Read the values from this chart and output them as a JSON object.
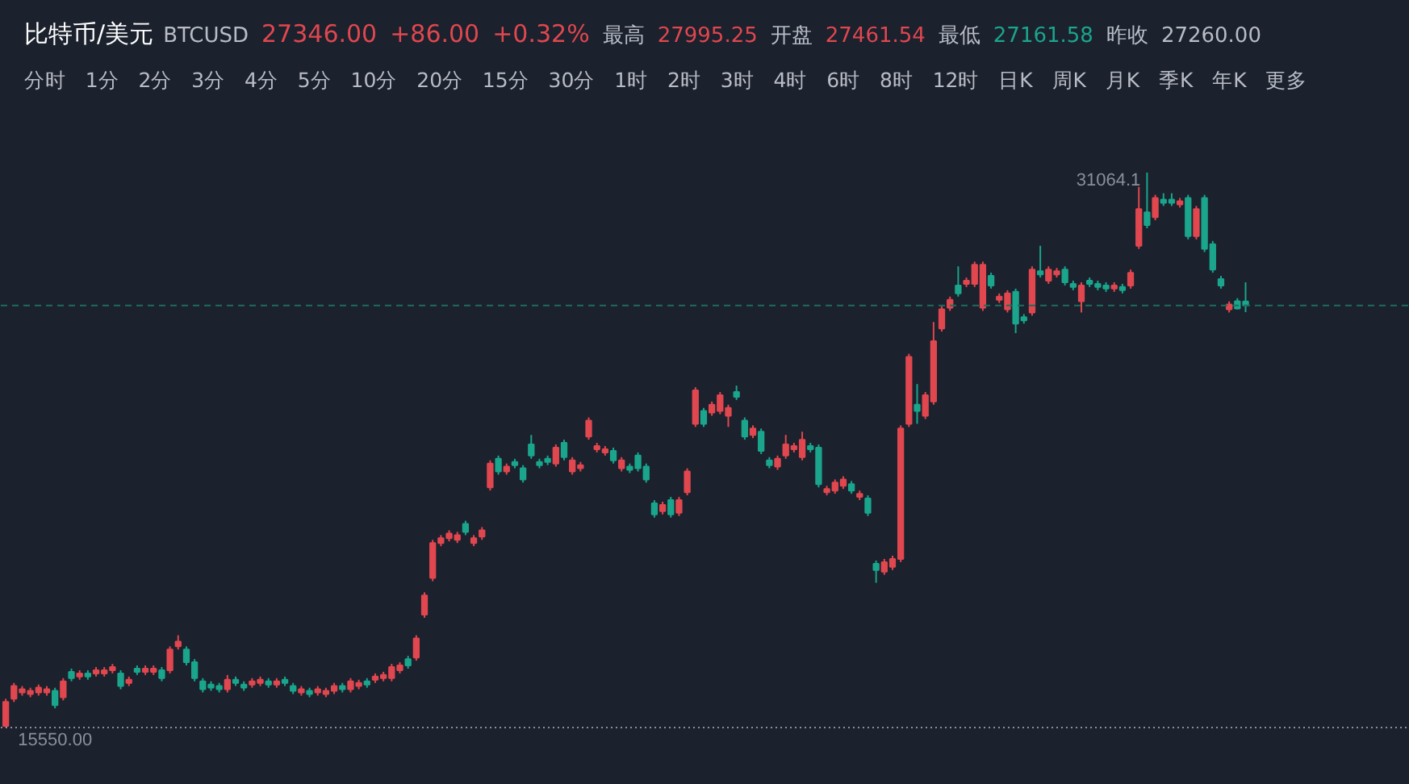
{
  "chart_data": {
    "type": "candlestick",
    "title": "比特币/美元",
    "subtitle": "分时   1分   2分   3分   4分   5分   10分   20分   15分   30分   1时   2时   3时   4时   6时   8时   12时   日K   周K   月K   季K   年K   更多",
    "annotations": [
      "BTCUSD",
      "27346.00",
      "+86.00",
      "+0.32%",
      "最高",
      "27995.25",
      "开盘",
      "27461.54",
      "最低",
      "27161.58",
      "昨收",
      "27260.00",
      "31064.1",
      "15550.00"
    ],
    "ref_lines": [
      {
        "axis": "y",
        "value": 27346,
        "color": "#1f6b5e",
        "line_style": "dashed"
      }
    ],
    "categories": [
      null,
      null,
      null,
      null,
      null,
      null,
      null,
      null,
      null,
      null,
      null,
      null,
      null,
      null,
      null,
      null,
      null,
      null,
      null,
      null,
      null,
      null,
      null,
      null,
      null,
      null,
      null,
      null,
      null,
      null,
      null,
      null,
      null,
      null,
      null,
      null,
      null,
      null,
      null,
      null,
      null,
      null,
      null,
      null,
      null,
      null,
      null,
      null,
      null,
      null,
      null,
      null,
      null,
      null,
      null,
      null,
      null,
      null,
      null,
      null,
      null,
      null,
      null,
      null,
      null,
      null,
      null,
      null,
      null,
      null,
      null,
      null,
      null,
      null,
      null,
      null,
      null,
      null,
      null,
      null,
      null,
      null,
      null,
      null,
      null,
      null,
      null,
      null,
      null,
      null,
      null,
      null,
      null,
      null,
      null,
      null,
      null,
      null,
      null,
      null,
      null,
      null,
      null,
      null,
      null,
      null,
      null,
      null,
      null,
      null,
      null,
      null,
      null,
      null,
      null,
      null,
      null,
      null,
      null,
      null,
      null,
      null,
      null,
      null,
      null,
      null,
      null,
      null,
      null,
      null,
      null,
      null,
      null,
      null,
      null,
      null,
      null,
      null,
      null,
      null,
      null,
      null,
      null,
      null,
      null,
      null,
      null,
      null,
      null,
      null,
      null,
      null
    ],
    "ohlc": [
      [
        15594,
        16351,
        15550,
        16262
      ],
      [
        16351,
        16795,
        16262,
        16706
      ],
      [
        16528,
        16706,
        16439,
        16617
      ],
      [
        16483,
        16661,
        16395,
        16572
      ],
      [
        16528,
        16750,
        16439,
        16661
      ],
      [
        16528,
        16706,
        16439,
        16617
      ],
      [
        16572,
        16661,
        16083,
        16173
      ],
      [
        16395,
        16928,
        16306,
        16839
      ],
      [
        17106,
        17195,
        16839,
        16928
      ],
      [
        16972,
        17150,
        16884,
        17061
      ],
      [
        17061,
        17150,
        16884,
        16972
      ],
      [
        17061,
        17239,
        16972,
        17150
      ],
      [
        17061,
        17239,
        16972,
        17150
      ],
      [
        17150,
        17328,
        17061,
        17239
      ],
      [
        17061,
        17150,
        16617,
        16706
      ],
      [
        16795,
        16972,
        16706,
        16884
      ],
      [
        17195,
        17284,
        17017,
        17106
      ],
      [
        17106,
        17284,
        17017,
        17195
      ],
      [
        17106,
        17284,
        17017,
        17195
      ],
      [
        17150,
        17239,
        16839,
        16928
      ],
      [
        17150,
        17817,
        17061,
        17728
      ],
      [
        17817,
        18128,
        17728,
        17951
      ],
      [
        17728,
        17817,
        17284,
        17372
      ],
      [
        17372,
        17461,
        16839,
        16928
      ],
      [
        16839,
        16928,
        16528,
        16617
      ],
      [
        16750,
        16839,
        16572,
        16661
      ],
      [
        16706,
        16795,
        16528,
        16617
      ],
      [
        16617,
        17017,
        16528,
        16884
      ],
      [
        16884,
        16972,
        16706,
        16795
      ],
      [
        16750,
        16839,
        16572,
        16661
      ],
      [
        16750,
        16928,
        16661,
        16839
      ],
      [
        16795,
        16972,
        16706,
        16884
      ],
      [
        16839,
        16928,
        16661,
        16750
      ],
      [
        16750,
        16928,
        16661,
        16839
      ],
      [
        16884,
        16972,
        16706,
        16795
      ],
      [
        16706,
        16795,
        16483,
        16572
      ],
      [
        16528,
        16706,
        16439,
        16617
      ],
      [
        16572,
        16661,
        16395,
        16483
      ],
      [
        16528,
        16706,
        16439,
        16617
      ],
      [
        16483,
        16661,
        16395,
        16572
      ],
      [
        16572,
        16795,
        16483,
        16706
      ],
      [
        16706,
        16795,
        16528,
        16617
      ],
      [
        16617,
        16928,
        16528,
        16839
      ],
      [
        16706,
        16884,
        16617,
        16795
      ],
      [
        16839,
        16928,
        16661,
        16750
      ],
      [
        16884,
        17061,
        16795,
        16972
      ],
      [
        16928,
        17106,
        16839,
        17017
      ],
      [
        16928,
        17328,
        16839,
        17239
      ],
      [
        17150,
        17372,
        17061,
        17284
      ],
      [
        17461,
        17550,
        17195,
        17284
      ],
      [
        17506,
        18128,
        17417,
        18039
      ],
      [
        18706,
        19328,
        18617,
        19239
      ],
      [
        19729,
        20795,
        19639,
        20706
      ],
      [
        20706,
        20928,
        20617,
        20840
      ],
      [
        20840,
        21062,
        20751,
        20973
      ],
      [
        20795,
        21017,
        20706,
        20928
      ],
      [
        21240,
        21329,
        20928,
        21017
      ],
      [
        20706,
        20928,
        20617,
        20840
      ],
      [
        20884,
        21151,
        20795,
        21062
      ],
      [
        22262,
        23018,
        22173,
        22929
      ],
      [
        23062,
        23151,
        22618,
        22706
      ],
      [
        22706,
        22929,
        22618,
        22840
      ],
      [
        22973,
        23062,
        22795,
        22884
      ],
      [
        22795,
        22884,
        22395,
        22484
      ],
      [
        23462,
        23729,
        23062,
        23151
      ],
      [
        22973,
        23062,
        22795,
        22884
      ],
      [
        23062,
        23151,
        22884,
        22973
      ],
      [
        22929,
        23462,
        22840,
        23373
      ],
      [
        23507,
        23595,
        23018,
        23107
      ],
      [
        22706,
        23107,
        22618,
        23018
      ],
      [
        22795,
        22973,
        22706,
        22884
      ],
      [
        23684,
        24218,
        23595,
        24129
      ],
      [
        23329,
        23507,
        23240,
        23418
      ],
      [
        23240,
        23418,
        23151,
        23329
      ],
      [
        23284,
        23373,
        22929,
        23018
      ],
      [
        22795,
        23107,
        22706,
        23018
      ],
      [
        22840,
        22929,
        22662,
        22751
      ],
      [
        23151,
        23240,
        22706,
        22795
      ],
      [
        22840,
        22929,
        22395,
        22484
      ],
      [
        21817,
        21906,
        21417,
        21506
      ],
      [
        21595,
        21862,
        21506,
        21773
      ],
      [
        21906,
        21995,
        21417,
        21506
      ],
      [
        21551,
        21995,
        21462,
        21906
      ],
      [
        22129,
        22795,
        22040,
        22706
      ],
      [
        24040,
        25062,
        23951,
        24973
      ],
      [
        24396,
        24484,
        23951,
        24040
      ],
      [
        24351,
        24662,
        24262,
        24573
      ],
      [
        24396,
        24929,
        24307,
        24840
      ],
      [
        24262,
        24573,
        23951,
        24484
      ],
      [
        24929,
        25107,
        24707,
        24796
      ],
      [
        24129,
        24218,
        23595,
        23684
      ],
      [
        23729,
        23996,
        23640,
        23907
      ],
      [
        23818,
        23907,
        23195,
        23284
      ],
      [
        23018,
        23107,
        22795,
        22884
      ],
      [
        22840,
        23151,
        22751,
        23062
      ],
      [
        23151,
        23729,
        23062,
        23462
      ],
      [
        23329,
        23507,
        23240,
        23418
      ],
      [
        23107,
        23818,
        23018,
        23595
      ],
      [
        23418,
        23507,
        23240,
        23329
      ],
      [
        23373,
        23462,
        22262,
        22351
      ],
      [
        22129,
        22306,
        22040,
        22218
      ],
      [
        22173,
        22484,
        22084,
        22395
      ],
      [
        22306,
        22573,
        22218,
        22484
      ],
      [
        22351,
        22440,
        22084,
        22173
      ],
      [
        21995,
        22173,
        21906,
        22084
      ],
      [
        21951,
        22040,
        21462,
        21551
      ],
      [
        20128,
        20217,
        19595,
        19951
      ],
      [
        19906,
        20262,
        19817,
        20173
      ],
      [
        20039,
        20351,
        19951,
        20262
      ],
      [
        20262,
        23996,
        20173,
        23907
      ],
      [
        24040,
        25996,
        23951,
        25907
      ],
      [
        24573,
        25151,
        24040,
        24396
      ],
      [
        24262,
        24929,
        24173,
        24840
      ],
      [
        24662,
        26885,
        24573,
        26351
      ],
      [
        26707,
        27329,
        26618,
        27240
      ],
      [
        27285,
        27596,
        27196,
        27507
      ],
      [
        27907,
        28441,
        27596,
        27685
      ],
      [
        27952,
        28129,
        27863,
        28040
      ],
      [
        27952,
        28574,
        27863,
        28485
      ],
      [
        27285,
        28574,
        27196,
        28485
      ],
      [
        28174,
        28263,
        27818,
        27907
      ],
      [
        27507,
        27685,
        27418,
        27596
      ],
      [
        27240,
        27774,
        27151,
        27685
      ],
      [
        27729,
        27818,
        26574,
        26840
      ],
      [
        27018,
        27107,
        26840,
        26929
      ],
      [
        27151,
        28441,
        27063,
        28352
      ],
      [
        28307,
        29018,
        28129,
        28218
      ],
      [
        28040,
        28441,
        27952,
        28352
      ],
      [
        28218,
        28396,
        28129,
        28307
      ],
      [
        28352,
        28441,
        27907,
        27996
      ],
      [
        27952,
        28040,
        27774,
        27863
      ],
      [
        27463,
        27996,
        27151,
        27907
      ],
      [
        28040,
        28129,
        27863,
        27952
      ],
      [
        27952,
        28040,
        27774,
        27863
      ],
      [
        27907,
        27996,
        27729,
        27818
      ],
      [
        27818,
        27996,
        27729,
        27907
      ],
      [
        27863,
        27952,
        27685,
        27774
      ],
      [
        27907,
        28352,
        27818,
        28263
      ],
      [
        29018,
        30663,
        28929,
        30041
      ],
      [
        29952,
        31064.1,
        29507,
        29596
      ],
      [
        29818,
        30441,
        29730,
        30352
      ],
      [
        30307,
        30485,
        30130,
        30219
      ],
      [
        30307,
        30485,
        30130,
        30219
      ],
      [
        30174,
        30352,
        30085,
        30263
      ],
      [
        30352,
        30441,
        29196,
        29285
      ],
      [
        29285,
        30130,
        29196,
        30041
      ],
      [
        30352,
        30441,
        28841,
        28929
      ],
      [
        29063,
        29152,
        28263,
        28352
      ],
      [
        28085,
        28174,
        27818,
        27907
      ],
      [
        27240,
        27463,
        27151,
        27374
      ],
      [
        27463,
        27552,
        27240,
        27260
      ],
      [
        27461.54,
        27995.25,
        27161.58,
        27346.0
      ]
    ]
  }
}
